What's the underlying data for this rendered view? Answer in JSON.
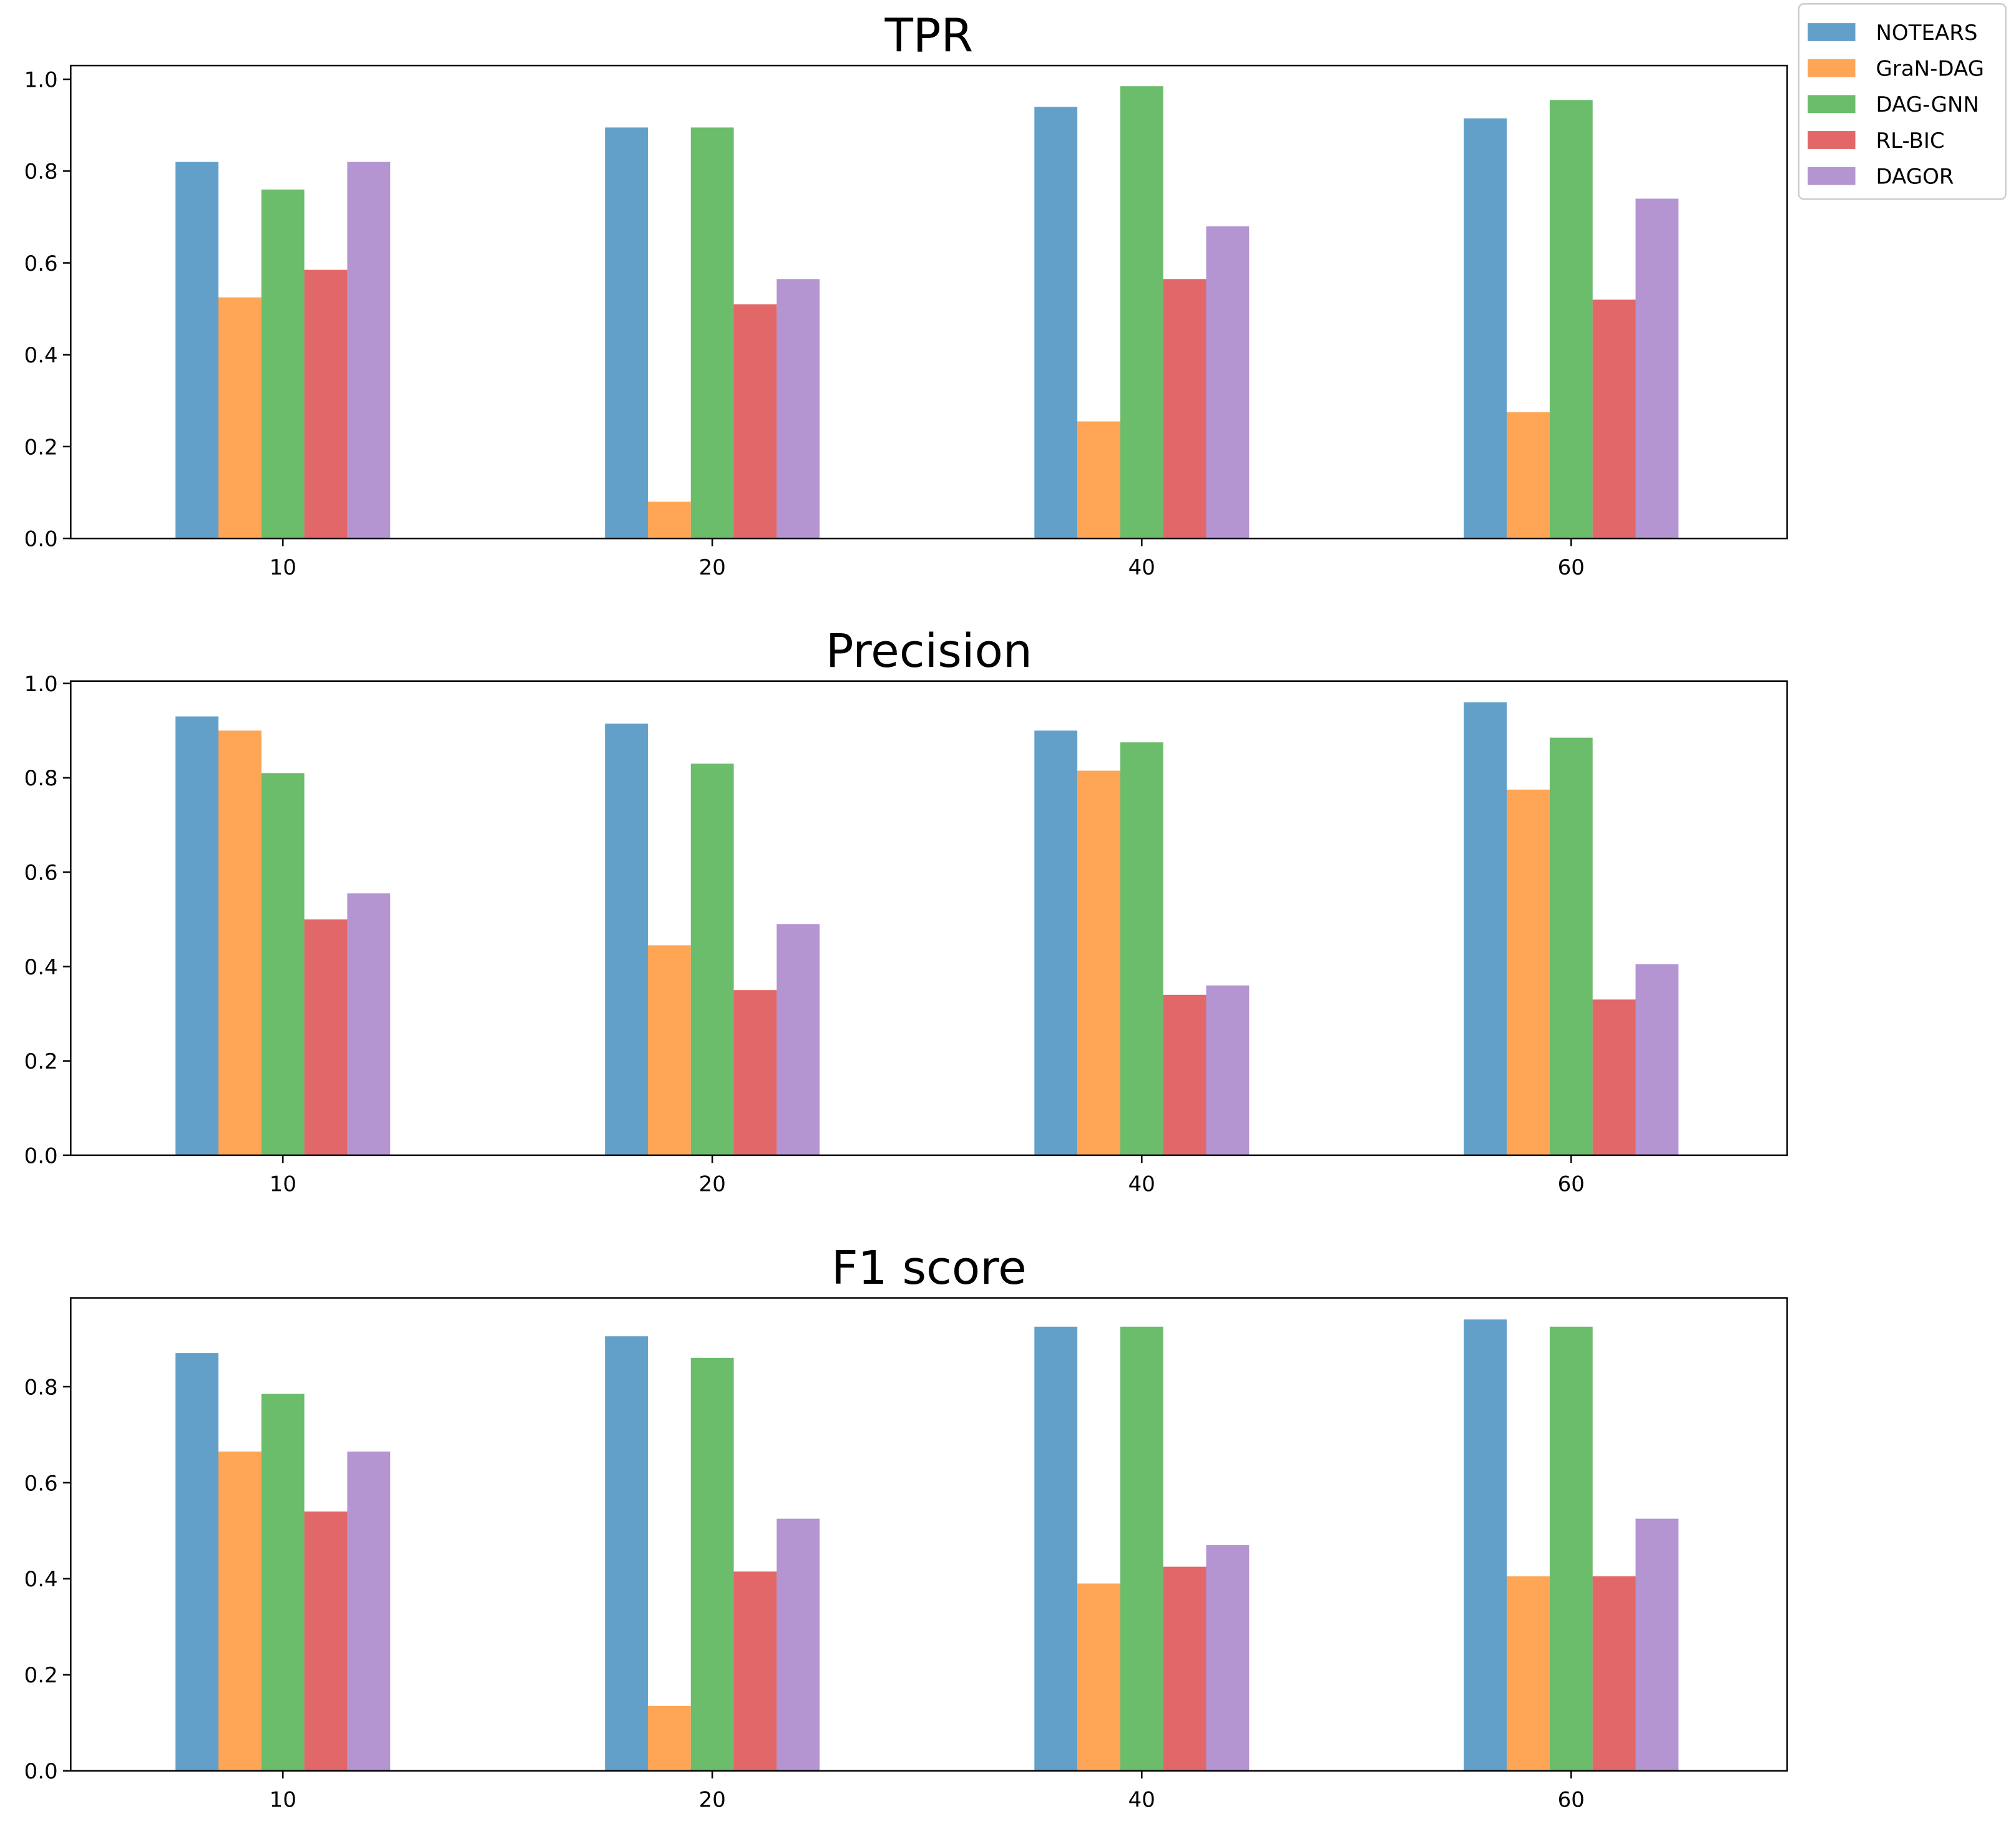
{
  "chart_data": [
    {
      "type": "bar",
      "title": "TPR",
      "categories": [
        "10",
        "20",
        "40",
        "60"
      ],
      "ylim": [
        0,
        1.03
      ],
      "yticks": [
        "0.0",
        "0.2",
        "0.4",
        "0.6",
        "0.8",
        "1.0"
      ],
      "ytick_values": [
        0,
        0.2,
        0.4,
        0.6,
        0.8,
        1.0
      ],
      "series": [
        {
          "name": "NOTEARS",
          "values": [
            0.82,
            0.895,
            0.94,
            0.915
          ]
        },
        {
          "name": "GraN-DAG",
          "values": [
            0.525,
            0.08,
            0.255,
            0.275
          ]
        },
        {
          "name": "DAG-GNN",
          "values": [
            0.76,
            0.895,
            0.985,
            0.955
          ]
        },
        {
          "name": "RL-BIC",
          "values": [
            0.585,
            0.51,
            0.565,
            0.52
          ]
        },
        {
          "name": "DAGOR",
          "values": [
            0.82,
            0.565,
            0.68,
            0.74
          ]
        }
      ]
    },
    {
      "type": "bar",
      "title": "Precision",
      "categories": [
        "10",
        "20",
        "40",
        "60"
      ],
      "ylim": [
        0,
        1.005
      ],
      "yticks": [
        "0.0",
        "0.2",
        "0.4",
        "0.6",
        "0.8",
        "1.0"
      ],
      "ytick_values": [
        0,
        0.2,
        0.4,
        0.6,
        0.8,
        1.0
      ],
      "series": [
        {
          "name": "NOTEARS",
          "values": [
            0.93,
            0.915,
            0.9,
            0.96
          ]
        },
        {
          "name": "GraN-DAG",
          "values": [
            0.9,
            0.445,
            0.815,
            0.775
          ]
        },
        {
          "name": "DAG-GNN",
          "values": [
            0.81,
            0.83,
            0.875,
            0.885
          ]
        },
        {
          "name": "RL-BIC",
          "values": [
            0.5,
            0.35,
            0.34,
            0.33
          ]
        },
        {
          "name": "DAGOR",
          "values": [
            0.555,
            0.49,
            0.36,
            0.405
          ]
        }
      ]
    },
    {
      "type": "bar",
      "title": "F1 score",
      "categories": [
        "10",
        "20",
        "40",
        "60"
      ],
      "ylim": [
        0,
        0.985
      ],
      "yticks": [
        "0.0",
        "0.2",
        "0.4",
        "0.6",
        "0.8"
      ],
      "ytick_values": [
        0,
        0.2,
        0.4,
        0.6,
        0.8
      ],
      "series": [
        {
          "name": "NOTEARS",
          "values": [
            0.87,
            0.905,
            0.925,
            0.94
          ]
        },
        {
          "name": "GraN-DAG",
          "values": [
            0.665,
            0.135,
            0.39,
            0.405
          ]
        },
        {
          "name": "DAG-GNN",
          "values": [
            0.785,
            0.86,
            0.925,
            0.925
          ]
        },
        {
          "name": "RL-BIC",
          "values": [
            0.54,
            0.415,
            0.425,
            0.405
          ]
        },
        {
          "name": "DAGOR",
          "values": [
            0.665,
            0.525,
            0.47,
            0.525
          ]
        }
      ]
    }
  ],
  "legend": {
    "position": "top-right",
    "entries": [
      "NOTEARS",
      "GraN-DAG",
      "DAG-GNN",
      "RL-BIC",
      "DAGOR"
    ]
  },
  "colors": [
    "#1f77b4",
    "#ff7f0e",
    "#2ca02c",
    "#d62728",
    "#9467bd"
  ]
}
